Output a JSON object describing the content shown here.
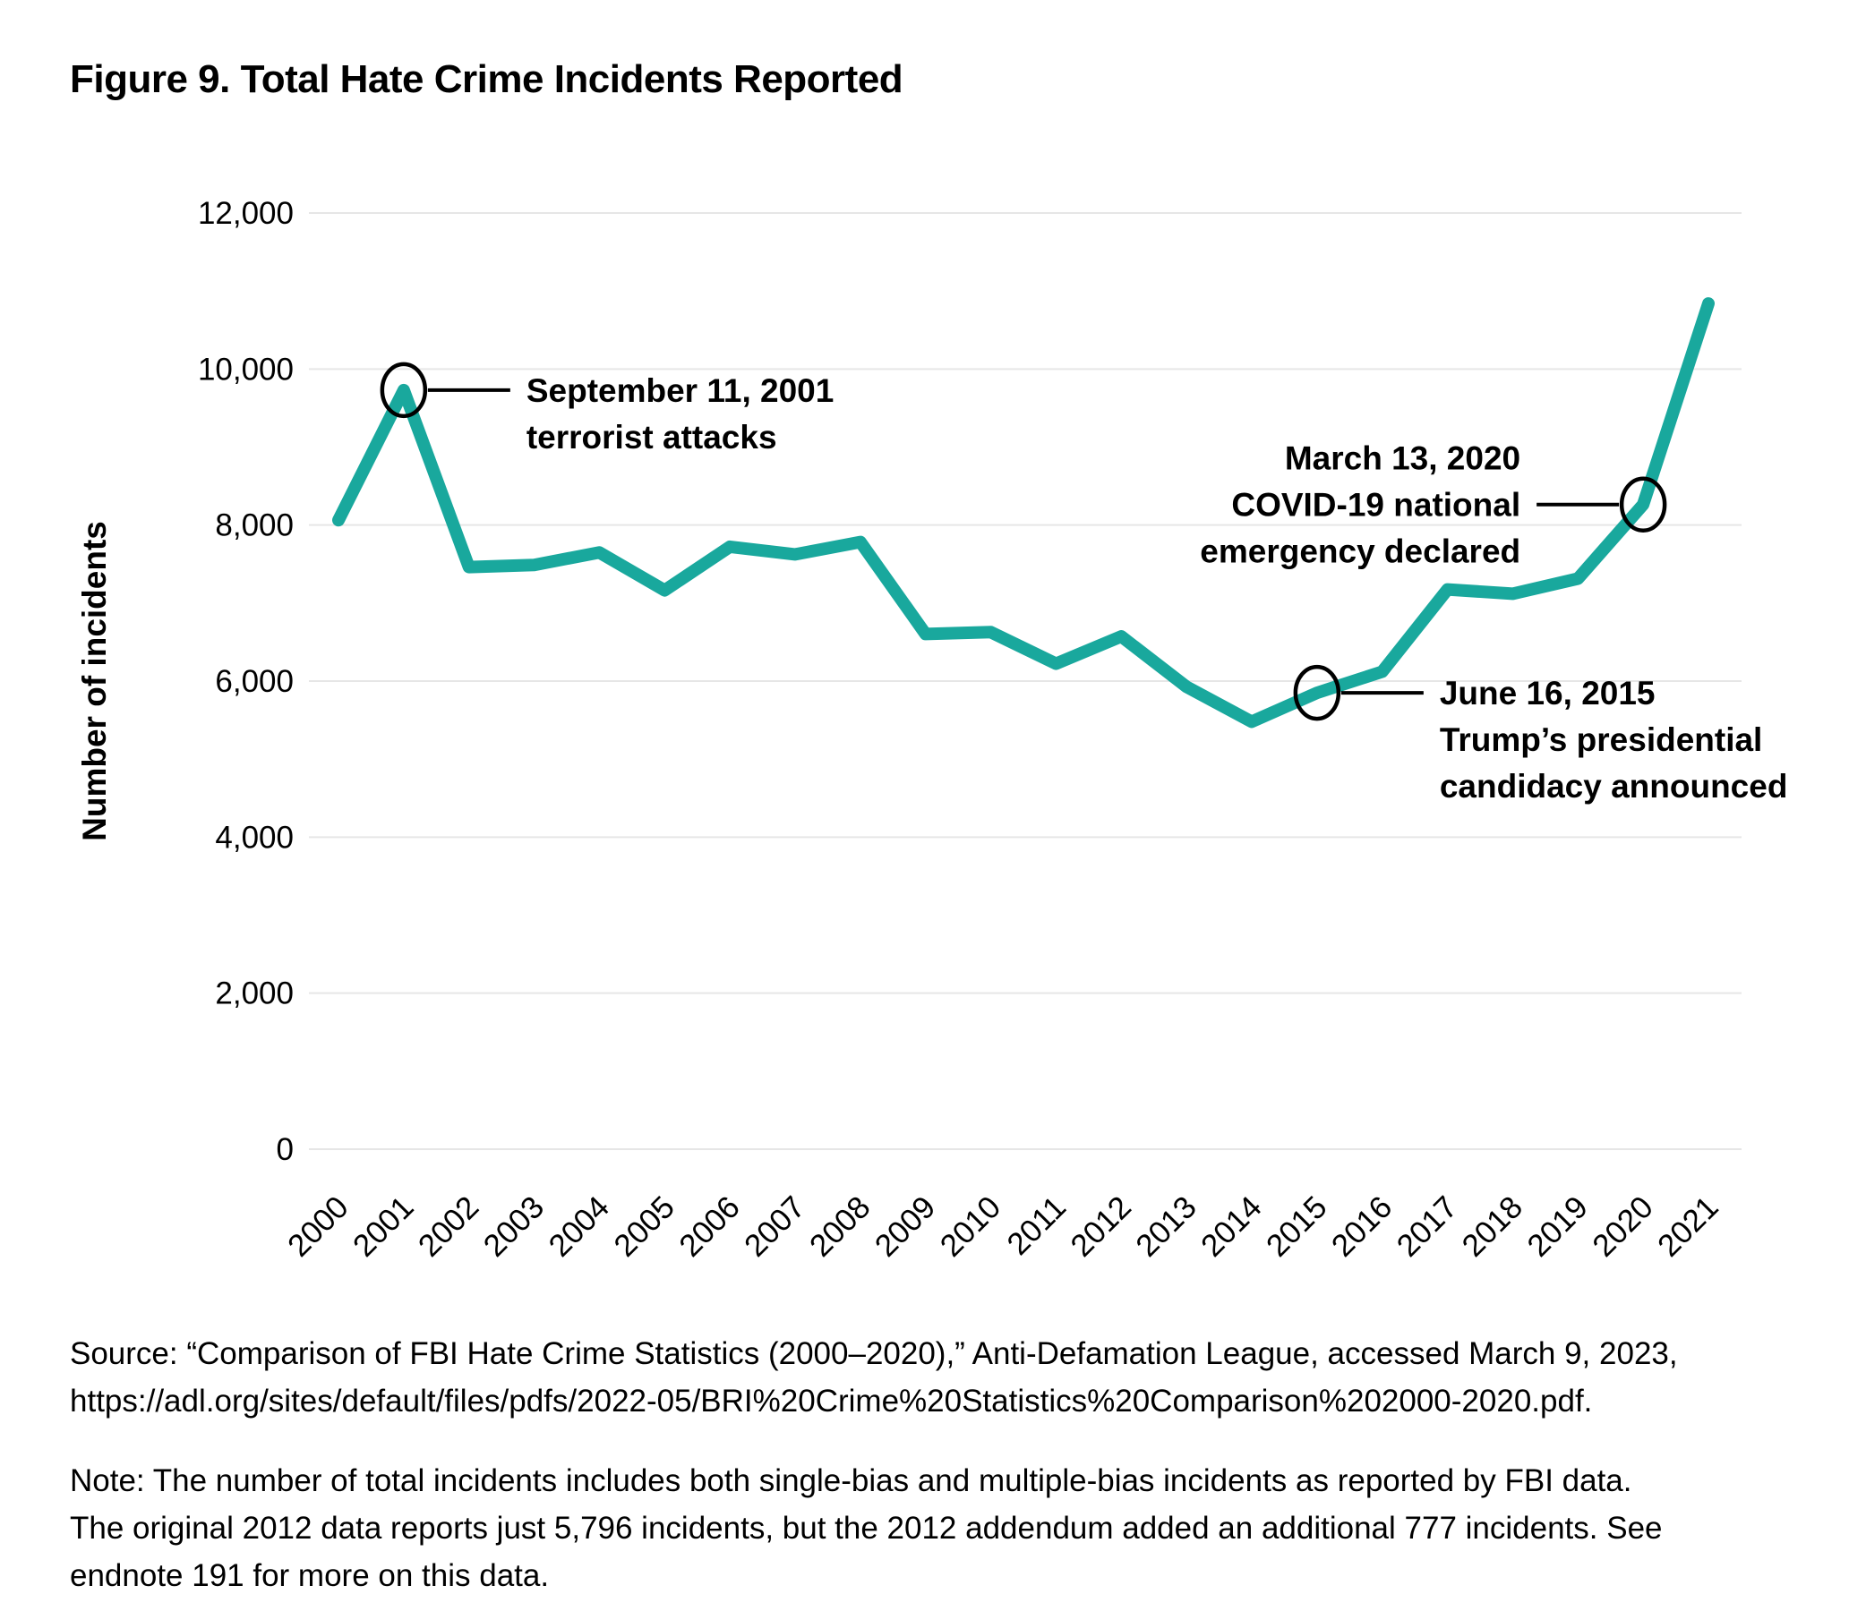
{
  "title": "Figure 9. Total Hate Crime Incidents Reported",
  "chart_data": {
    "type": "line",
    "title": "Figure 9. Total Hate Crime Incidents Reported",
    "xlabel": "",
    "ylabel": "Number of incidents",
    "ylim": [
      0,
      12000
    ],
    "ytick_interval": 2000,
    "ytick_labels": [
      "0",
      "2,000",
      "4,000",
      "6,000",
      "8,000",
      "10,000",
      "12,000"
    ],
    "grid": "horizontal",
    "legend": "none",
    "line_color": "#19A89D",
    "gridline_color": "#E6E6E6",
    "categories": [
      2000,
      2001,
      2002,
      2003,
      2004,
      2005,
      2006,
      2007,
      2008,
      2009,
      2010,
      2011,
      2012,
      2013,
      2014,
      2015,
      2016,
      2017,
      2018,
      2019,
      2020,
      2021
    ],
    "values": [
      8063,
      9730,
      7462,
      7489,
      7649,
      7163,
      7722,
      7624,
      7783,
      6604,
      6628,
      6222,
      6573,
      5928,
      5479,
      5850,
      6121,
      7175,
      7120,
      7314,
      8263,
      10840
    ],
    "annotations": [
      {
        "year": 2001,
        "value": 9730,
        "side": "right",
        "anchor_line": 0,
        "lines": [
          "September 11, 2001",
          "terrorist attacks"
        ]
      },
      {
        "year": 2015,
        "value": 5850,
        "side": "right",
        "anchor_line": 0,
        "lines": [
          "June 16, 2015",
          "Trump’s presidential",
          "candidacy announced"
        ]
      },
      {
        "year": 2020,
        "value": 8263,
        "side": "left",
        "anchor_line": 1,
        "lines": [
          "March 13, 2020",
          "COVID-19 national",
          "emergency declared"
        ]
      }
    ]
  },
  "source": {
    "text": "Source: “Comparison of FBI Hate Crime Statistics (2000–2020),” Anti-Defamation League, accessed March 9, 2023,\nhttps://adl.org/sites/default/files/pdfs/2022-05/BRI%20Crime%20Statistics%20Comparison%202000-2020.pdf."
  },
  "note": {
    "text": "Note: The number of total incidents includes both single-bias and multiple-bias incidents as reported by FBI data.\nThe original 2012 data reports just 5,796 incidents, but the 2012 addendum added an additional 777 incidents. See\nendnote 191 for more on this data."
  }
}
